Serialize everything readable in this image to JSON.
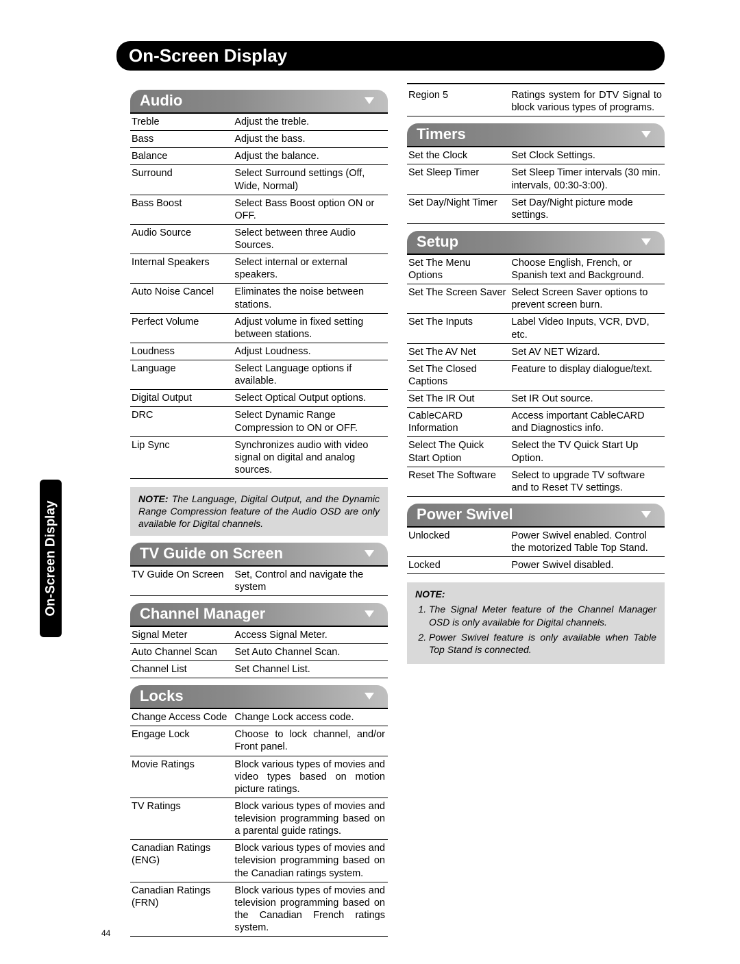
{
  "page_number": "44",
  "side_tab": "On-Screen Display",
  "title": "On-Screen Display",
  "sections": {
    "audio": {
      "heading": "Audio",
      "items": [
        {
          "name": "Treble",
          "desc": "Adjust the treble."
        },
        {
          "name": "Bass",
          "desc": "Adjust the bass."
        },
        {
          "name": "Balance",
          "desc": "Adjust the balance."
        },
        {
          "name": "Surround",
          "desc": "Select Surround settings (Off, Wide, Normal)"
        },
        {
          "name": "Bass Boost",
          "desc": "Select Bass Boost option ON or OFF."
        },
        {
          "name": "Audio Source",
          "desc": "Select between three Audio Sources."
        },
        {
          "name": "Internal Speakers",
          "desc": "Select internal or external speakers."
        },
        {
          "name": "Auto Noise Cancel",
          "desc": "Eliminates the noise between stations."
        },
        {
          "name": "Perfect Volume",
          "desc": "Adjust volume in fixed setting between stations."
        },
        {
          "name": "Loudness",
          "desc": "Adjust Loudness."
        },
        {
          "name": "Language",
          "desc": "Select Language options if available."
        },
        {
          "name": "Digital Output",
          "desc": "Select Optical Output options."
        },
        {
          "name": "DRC",
          "desc": "Select Dynamic Range Compression to ON or OFF."
        },
        {
          "name": "Lip Sync",
          "desc": "Synchronizes audio with video signal on digital and analog sources."
        }
      ]
    },
    "note1_label": "NOTE:",
    "note1_body": "The Language, Digital Output, and the Dynamic Range Compression feature of the Audio OSD are only available for Digital channels.",
    "tvguide": {
      "heading": "TV Guide on Screen",
      "items": [
        {
          "name": "TV Guide On Screen",
          "desc": "Set, Control and navigate the system"
        }
      ]
    },
    "channel": {
      "heading": "Channel Manager",
      "items": [
        {
          "name": "Signal Meter",
          "desc": "Access Signal Meter."
        },
        {
          "name": "Auto Channel Scan",
          "desc": "Set Auto Channel Scan."
        },
        {
          "name": "Channel List",
          "desc": "Set Channel List."
        }
      ]
    },
    "locks": {
      "heading": "Locks",
      "items": [
        {
          "name": "Change Access Code",
          "desc": "Change Lock access code."
        },
        {
          "name": "Engage Lock",
          "desc": "Choose to lock channel, and/or Front panel."
        },
        {
          "name": "Movie Ratings",
          "desc": "Block various types of movies and video types based on motion picture ratings."
        },
        {
          "name": "TV Ratings",
          "desc": "Block various types of movies and television programming based on a parental guide ratings."
        },
        {
          "name": "Canadian Ratings (ENG)",
          "desc": "Block various types of movies and television programming based on the Canadian ratings system."
        },
        {
          "name": "Canadian Ratings (FRN)",
          "desc": "Block various types of movies and television programming based on the Canadian French ratings system."
        }
      ]
    },
    "region5": {
      "name": "Region 5",
      "desc": "Ratings system for DTV Signal to block various types of programs."
    },
    "timers": {
      "heading": "Timers",
      "items": [
        {
          "name": "Set the Clock",
          "desc": "Set Clock Settings."
        },
        {
          "name": "Set Sleep Timer",
          "desc": "Set Sleep Timer intervals (30 min. intervals, 00:30-3:00)."
        },
        {
          "name": "Set Day/Night Timer",
          "desc": "Set Day/Night picture mode settings."
        }
      ]
    },
    "setup": {
      "heading": "Setup",
      "items": [
        {
          "name": "Set The Menu Options",
          "desc": "Choose English, French, or Spanish text and Background."
        },
        {
          "name": "Set The Screen Saver",
          "desc": "Select Screen Saver options to prevent screen burn."
        },
        {
          "name": "Set The Inputs",
          "desc": "Label Video Inputs, VCR, DVD, etc."
        },
        {
          "name": "Set The AV Net",
          "desc": "Set AV NET Wizard."
        },
        {
          "name": "Set The Closed Captions",
          "desc": "Feature to display dialogue/text."
        },
        {
          "name": "Set The IR Out",
          "desc": "Set IR Out source."
        },
        {
          "name": "CableCARD Information",
          "desc": "Access important CableCARD and Diagnostics info."
        },
        {
          "name": "Select The Quick Start Option",
          "desc": "Select the TV Quick Start Up Option."
        },
        {
          "name": "Reset The Software",
          "desc": "Select to upgrade TV software and to Reset TV settings."
        }
      ]
    },
    "swivel": {
      "heading": "Power Swivel",
      "items": [
        {
          "name": "Unlocked",
          "desc": "Power Swivel enabled.  Control the motorized Table Top Stand."
        },
        {
          "name": "Locked",
          "desc": "Power Swivel disabled."
        }
      ]
    },
    "note2_label": "NOTE:",
    "note2_item1": "The Signal Meter feature of the Channel Manager OSD is only available for Digital channels.",
    "note2_item2": "Power Swivel feature is only available when Table Top Stand is connected."
  }
}
